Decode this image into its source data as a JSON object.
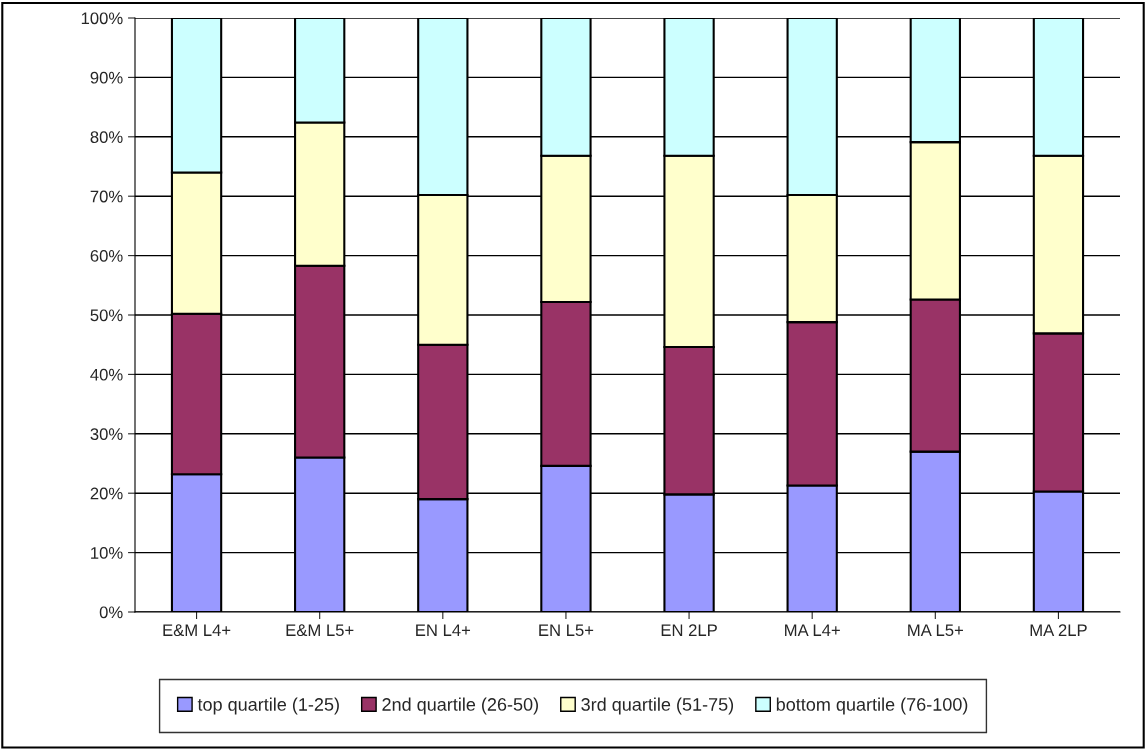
{
  "chart_data": {
    "type": "bar",
    "stacked": true,
    "categories": [
      "E&M L4+",
      "E&M L5+",
      "EN L4+",
      "EN L5+",
      "EN 2LP",
      "MA L4+",
      "MA L5+",
      "MA 2LP"
    ],
    "series": [
      {
        "name": "top quartile (1-25)",
        "color": "#9999ff",
        "values": [
          23.2,
          26.0,
          19.0,
          24.6,
          19.8,
          21.3,
          27.0,
          20.3
        ]
      },
      {
        "name": "2nd quartile (26-50)",
        "color": "#993366",
        "values": [
          27.0,
          32.3,
          26.0,
          27.6,
          24.8,
          27.5,
          25.6,
          26.6
        ]
      },
      {
        "name": "3rd quartile (51-75)",
        "color": "#ffffcc",
        "values": [
          23.8,
          24.1,
          25.2,
          24.6,
          32.2,
          21.4,
          26.5,
          29.9
        ]
      },
      {
        "name": "bottom quartile (76-100)",
        "color": "#ccffff",
        "values": [
          26.0,
          17.6,
          29.8,
          23.2,
          23.2,
          29.8,
          20.9,
          23.2
        ]
      }
    ],
    "ylim": [
      0,
      100
    ],
    "yticks": [
      {
        "value": 0,
        "label": "0%"
      },
      {
        "value": 10,
        "label": "10%"
      },
      {
        "value": 20,
        "label": "20%"
      },
      {
        "value": 30,
        "label": "30%"
      },
      {
        "value": 40,
        "label": "40%"
      },
      {
        "value": 50,
        "label": "50%"
      },
      {
        "value": 60,
        "label": "60%"
      },
      {
        "value": 70,
        "label": "70%"
      },
      {
        "value": 80,
        "label": "80%"
      },
      {
        "value": 90,
        "label": "90%"
      },
      {
        "value": 100,
        "label": "100%"
      }
    ],
    "grid": "y",
    "legend": "bottom"
  }
}
